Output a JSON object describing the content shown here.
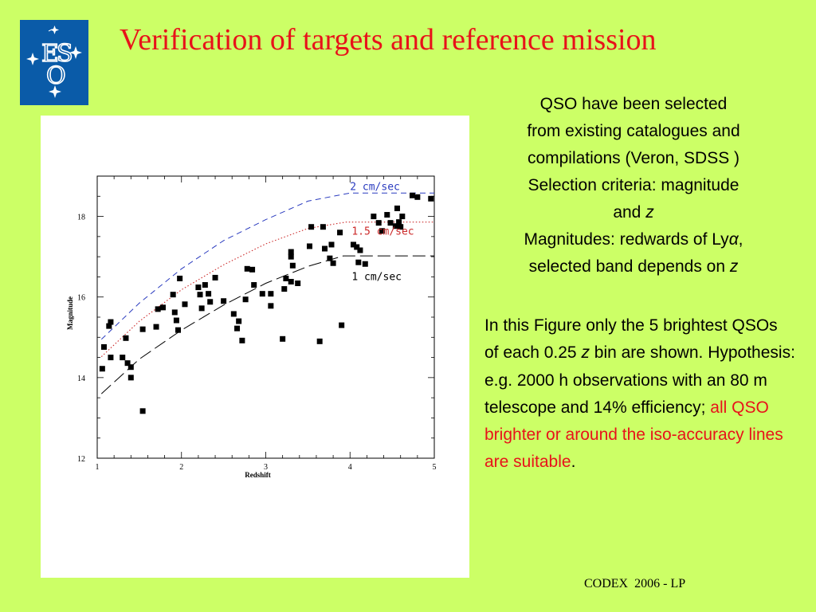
{
  "slide": {
    "title": "Verification of targets and reference mission",
    "footer": "CODEX  2006 - LP"
  },
  "logo": {
    "letters": [
      "E",
      "S",
      "O"
    ],
    "background": "#0a5ba8"
  },
  "description": {
    "line1": "QSO have been selected",
    "line2": "from existing catalogues and",
    "line3": "compilations (Veron, SDSS )",
    "line4": "Selection criteria: magnitude",
    "line5_pre": "and ",
    "line5_var": "z",
    "line6_pre": "Magnitudes: redwards of Ly",
    "line6_greek": "α",
    "line6_post": ",",
    "line7_pre": "selected band depends on ",
    "line7_var": "z"
  },
  "body": {
    "part1": "In this Figure only the  5 brightest QSOs of each 0.25 ",
    "part1_var": "z",
    "part2": " bin are shown. Hypothesis: e.g.  2000 h observations with an 80 m telescope and 14% efficiency; ",
    "highlight": "all QSO brighter or around the iso-accuracy lines are suitable",
    "end": "."
  },
  "colors": {
    "background": "#ccff66",
    "title_red": "#e8121a",
    "line_2cm": "#2a3bbf",
    "line_15cm": "#cc2a2a",
    "line_1cm": "#000000"
  },
  "chart_data": {
    "type": "scatter",
    "xlabel": "Redshift",
    "ylabel": "Magnitude",
    "xlim": [
      1,
      5
    ],
    "ylim": [
      12,
      19
    ],
    "xticks": [
      1,
      2,
      3,
      4,
      5
    ],
    "yticks": [
      12,
      14,
      16,
      18
    ],
    "grid": false,
    "points": [
      {
        "x": 1.06,
        "y": 14.22
      },
      {
        "x": 1.08,
        "y": 14.76
      },
      {
        "x": 1.14,
        "y": 15.28
      },
      {
        "x": 1.16,
        "y": 15.38
      },
      {
        "x": 1.16,
        "y": 14.5
      },
      {
        "x": 1.3,
        "y": 14.5
      },
      {
        "x": 1.34,
        "y": 14.98
      },
      {
        "x": 1.36,
        "y": 14.36
      },
      {
        "x": 1.4,
        "y": 14.26
      },
      {
        "x": 1.4,
        "y": 14.0
      },
      {
        "x": 1.54,
        "y": 15.2
      },
      {
        "x": 1.54,
        "y": 13.17
      },
      {
        "x": 1.7,
        "y": 15.26
      },
      {
        "x": 1.72,
        "y": 15.7
      },
      {
        "x": 1.78,
        "y": 15.74
      },
      {
        "x": 1.9,
        "y": 16.06
      },
      {
        "x": 1.92,
        "y": 15.62
      },
      {
        "x": 1.94,
        "y": 15.42
      },
      {
        "x": 1.96,
        "y": 15.18
      },
      {
        "x": 1.98,
        "y": 16.46
      },
      {
        "x": 2.04,
        "y": 15.82
      },
      {
        "x": 2.2,
        "y": 16.24
      },
      {
        "x": 2.22,
        "y": 16.06
      },
      {
        "x": 2.24,
        "y": 15.72
      },
      {
        "x": 2.28,
        "y": 16.3
      },
      {
        "x": 2.32,
        "y": 16.08
      },
      {
        "x": 2.34,
        "y": 15.88
      },
      {
        "x": 2.4,
        "y": 16.48
      },
      {
        "x": 2.5,
        "y": 15.9
      },
      {
        "x": 2.62,
        "y": 15.58
      },
      {
        "x": 2.66,
        "y": 15.22
      },
      {
        "x": 2.68,
        "y": 15.4
      },
      {
        "x": 2.72,
        "y": 14.92
      },
      {
        "x": 2.76,
        "y": 15.94
      },
      {
        "x": 2.78,
        "y": 16.7
      },
      {
        "x": 2.84,
        "y": 16.68
      },
      {
        "x": 2.86,
        "y": 16.3
      },
      {
        "x": 2.96,
        "y": 16.08
      },
      {
        "x": 3.06,
        "y": 16.08
      },
      {
        "x": 3.06,
        "y": 15.78
      },
      {
        "x": 3.2,
        "y": 14.96
      },
      {
        "x": 3.22,
        "y": 16.2
      },
      {
        "x": 3.24,
        "y": 16.46
      },
      {
        "x": 3.3,
        "y": 16.38
      },
      {
        "x": 3.3,
        "y": 17.0
      },
      {
        "x": 3.3,
        "y": 17.12
      },
      {
        "x": 3.32,
        "y": 16.78
      },
      {
        "x": 3.38,
        "y": 16.34
      },
      {
        "x": 3.52,
        "y": 17.26
      },
      {
        "x": 3.54,
        "y": 17.74
      },
      {
        "x": 3.64,
        "y": 14.9
      },
      {
        "x": 3.68,
        "y": 17.74
      },
      {
        "x": 3.7,
        "y": 17.2
      },
      {
        "x": 3.76,
        "y": 16.96
      },
      {
        "x": 3.78,
        "y": 17.3
      },
      {
        "x": 3.8,
        "y": 16.84
      },
      {
        "x": 3.88,
        "y": 17.6
      },
      {
        "x": 3.9,
        "y": 15.3
      },
      {
        "x": 4.04,
        "y": 17.3
      },
      {
        "x": 4.08,
        "y": 17.24
      },
      {
        "x": 4.1,
        "y": 16.86
      },
      {
        "x": 4.12,
        "y": 17.16
      },
      {
        "x": 4.18,
        "y": 16.82
      },
      {
        "x": 4.28,
        "y": 18.0
      },
      {
        "x": 4.34,
        "y": 17.84
      },
      {
        "x": 4.38,
        "y": 17.64
      },
      {
        "x": 4.44,
        "y": 18.04
      },
      {
        "x": 4.48,
        "y": 17.84
      },
      {
        "x": 4.54,
        "y": 17.76
      },
      {
        "x": 4.56,
        "y": 18.2
      },
      {
        "x": 4.58,
        "y": 17.86
      },
      {
        "x": 4.6,
        "y": 17.74
      },
      {
        "x": 4.62,
        "y": 18.0
      },
      {
        "x": 4.74,
        "y": 18.52
      },
      {
        "x": 4.8,
        "y": 18.48
      },
      {
        "x": 4.96,
        "y": 18.44
      }
    ],
    "lines": [
      {
        "name": "2 cm/sec",
        "style": "dashed",
        "x": [
          1.05,
          1.5,
          2.0,
          2.5,
          3.0,
          3.5,
          4.0,
          4.3,
          5.0
        ],
        "y": [
          14.95,
          15.85,
          16.7,
          17.4,
          17.92,
          18.38,
          18.58,
          18.58,
          18.58
        ]
      },
      {
        "name": "1.5 cm/sec",
        "style": "dotted",
        "x": [
          1.05,
          1.5,
          2.0,
          2.5,
          3.0,
          3.5,
          3.95,
          5.0
        ],
        "y": [
          14.52,
          15.4,
          16.18,
          16.8,
          17.32,
          17.7,
          17.86,
          17.86
        ]
      },
      {
        "name": "1 cm/sec",
        "style": "longdash",
        "x": [
          1.05,
          1.5,
          2.0,
          2.5,
          3.0,
          3.5,
          3.92,
          5.0
        ],
        "y": [
          13.6,
          14.46,
          15.18,
          15.8,
          16.34,
          16.76,
          17.02,
          17.02
        ]
      }
    ]
  }
}
